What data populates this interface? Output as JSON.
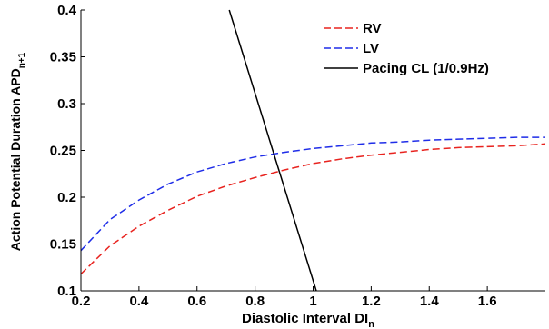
{
  "chart_data": {
    "type": "line",
    "xlabel": "Diastolic Interval DI",
    "xlabel_sub": "n",
    "ylabel": "Action Potential Duration APD",
    "ylabel_sub": "n+1",
    "xlim": [
      0.2,
      1.8
    ],
    "ylim": [
      0.1,
      0.4
    ],
    "xticks": [
      0.2,
      0.4,
      0.6,
      0.8,
      1.0,
      1.2,
      1.4,
      1.6
    ],
    "xtick_labels": [
      "0.2",
      "0.4",
      "0.6",
      "0.8",
      "1",
      "1.2",
      "1.4",
      "1.6"
    ],
    "yticks": [
      0.1,
      0.15,
      0.2,
      0.25,
      0.3,
      0.35,
      0.4
    ],
    "ytick_labels": [
      "0.1",
      "0.15",
      "0.2",
      "0.25",
      "0.3",
      "0.35",
      "0.4"
    ],
    "grid": false,
    "legend_position": "top-right",
    "series": [
      {
        "name": "RV",
        "color": "#e8231f",
        "dash": "dashed",
        "x": [
          0.2,
          0.3,
          0.4,
          0.5,
          0.6,
          0.7,
          0.8,
          0.9,
          1.0,
          1.1,
          1.2,
          1.3,
          1.4,
          1.5,
          1.6,
          1.7,
          1.8
        ],
        "y": [
          0.118,
          0.148,
          0.169,
          0.186,
          0.201,
          0.212,
          0.221,
          0.229,
          0.236,
          0.241,
          0.245,
          0.248,
          0.251,
          0.253,
          0.254,
          0.255,
          0.257
        ]
      },
      {
        "name": "LV",
        "color": "#1f2de8",
        "dash": "dashed",
        "x": [
          0.2,
          0.3,
          0.4,
          0.5,
          0.6,
          0.7,
          0.8,
          0.9,
          1.0,
          1.1,
          1.2,
          1.3,
          1.4,
          1.5,
          1.6,
          1.7,
          1.8
        ],
        "y": [
          0.143,
          0.176,
          0.197,
          0.214,
          0.227,
          0.236,
          0.243,
          0.248,
          0.252,
          0.255,
          0.258,
          0.259,
          0.261,
          0.262,
          0.263,
          0.264,
          0.264
        ]
      },
      {
        "name": "Pacing CL (1/0.9Hz)",
        "color": "#000000",
        "dash": "solid",
        "x": [
          0.711,
          1.011
        ],
        "y": [
          0.4,
          0.1
        ]
      }
    ]
  }
}
